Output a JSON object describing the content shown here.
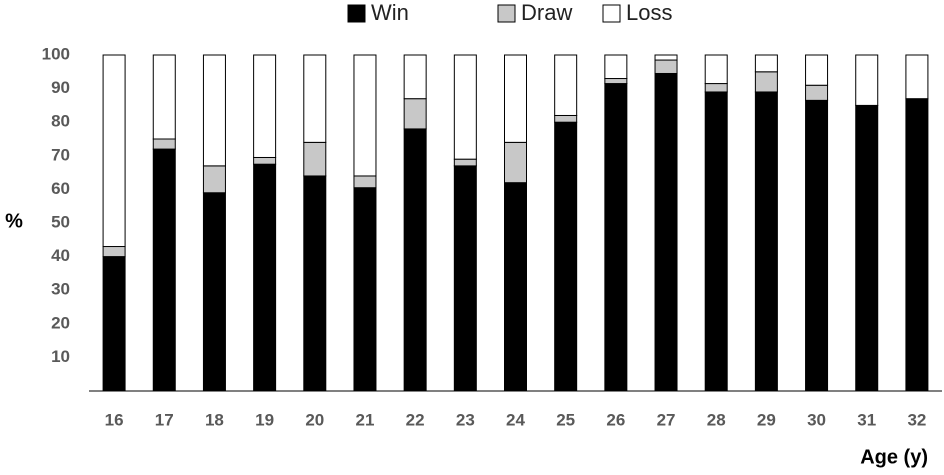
{
  "chart_data": {
    "type": "stacked_bar",
    "categories": [
      "16",
      "17",
      "18",
      "19",
      "20",
      "21",
      "22",
      "23",
      "24",
      "25",
      "26",
      "27",
      "28",
      "29",
      "30",
      "31",
      "32"
    ],
    "series": [
      {
        "name": "Win",
        "color": "#000000",
        "values": [
          40,
          72,
          59,
          67.5,
          64,
          60.5,
          78,
          67,
          62,
          80,
          91.5,
          94.5,
          89,
          89,
          86.5,
          85,
          87
        ]
      },
      {
        "name": "Draw",
        "color": "#c8c8c8",
        "values": [
          3,
          3,
          8,
          2,
          10,
          3.5,
          9,
          2,
          12,
          2,
          1.5,
          4,
          2.5,
          6,
          4.5,
          0,
          0
        ]
      },
      {
        "name": "Loss",
        "color": "#ffffff",
        "values": [
          57,
          25,
          33,
          30.5,
          26,
          36,
          13,
          31,
          26,
          18,
          7,
          1.5,
          8.5,
          5,
          9,
          15,
          13
        ]
      }
    ],
    "y_label": "%",
    "x_label": "Age (y)",
    "ylim": [
      0,
      100
    ],
    "yticks": [
      10,
      20,
      30,
      40,
      50,
      60,
      70,
      80,
      90,
      100
    ],
    "grid": false,
    "legend": "top"
  }
}
